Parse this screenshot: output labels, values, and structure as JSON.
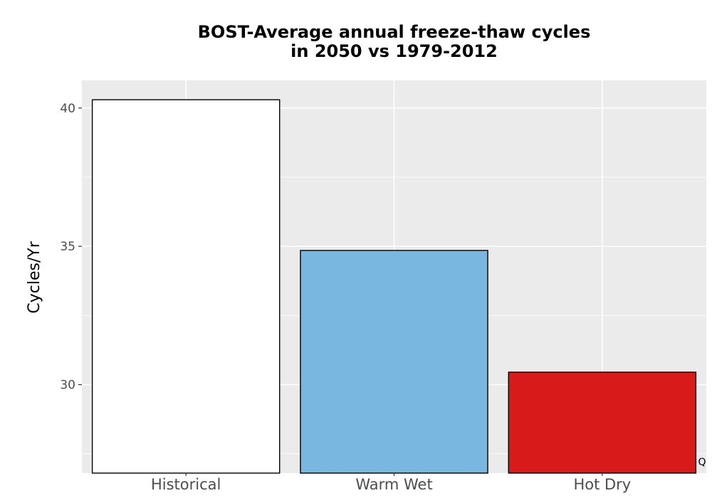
{
  "chart_data": {
    "type": "bar",
    "title_lines": [
      "BOST-Average annual freeze-thaw cycles",
      "in 2050 vs 1979-2012"
    ],
    "xlabel": "",
    "ylabel": "Cycles/Yr",
    "categories": [
      "Historical",
      "Warm Wet",
      "Hot Dry"
    ],
    "values": [
      40.3,
      34.85,
      30.45
    ],
    "colors": [
      "#ffffff",
      "#79b7e0",
      "#d81a1b"
    ],
    "ylim": [
      26.8,
      41.0
    ],
    "yticks": [
      30,
      35,
      40
    ],
    "grid": true,
    "panel_background": "#ebebeb",
    "corner_note": "Q"
  }
}
